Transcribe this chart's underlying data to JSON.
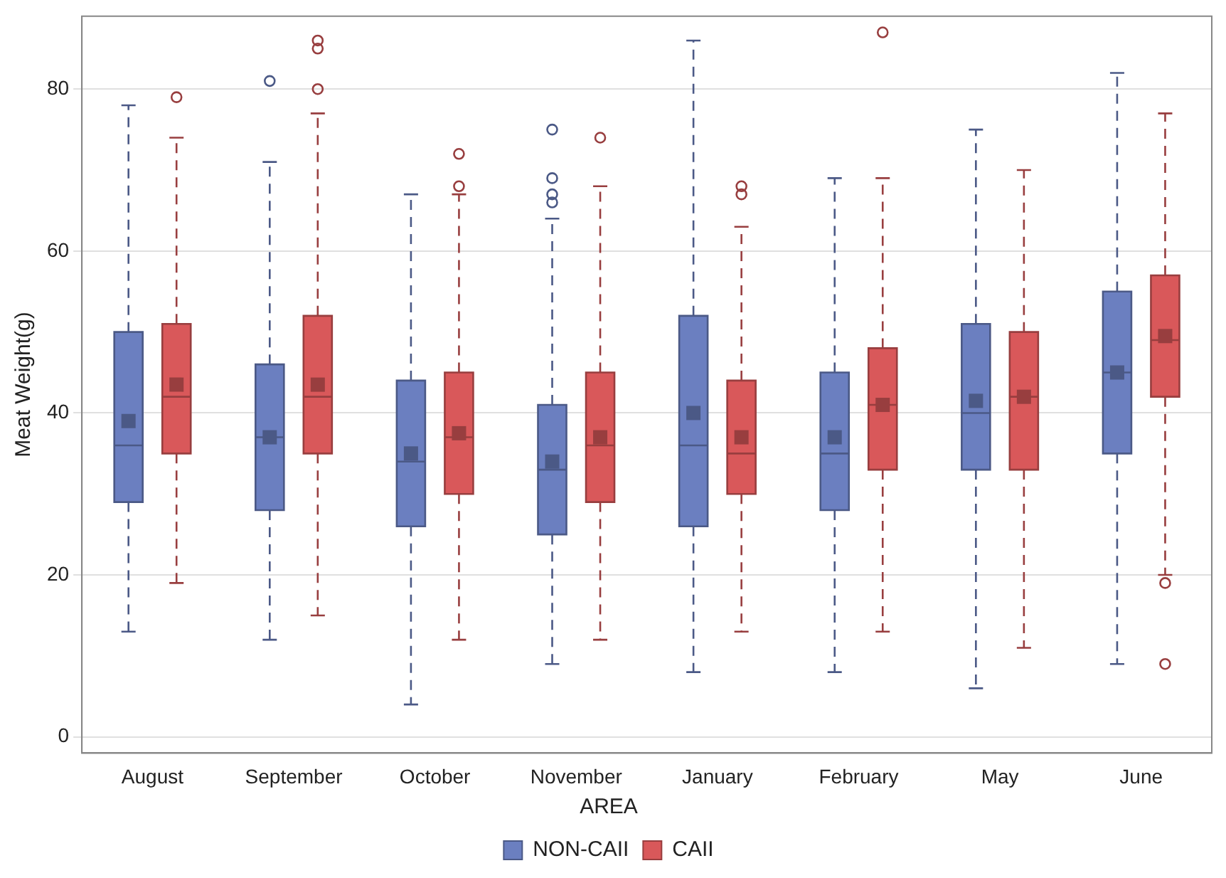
{
  "chart_data": {
    "type": "box",
    "ylabel": "Meat Weight(g)",
    "legend_title": "AREA",
    "legend": "bottom",
    "grid": "y",
    "line_style": "dashed",
    "categories": [
      "August",
      "September",
      "October",
      "November",
      "January",
      "February",
      "May",
      "June"
    ],
    "ylim": [
      -2,
      89
    ],
    "yticks": [
      0,
      20,
      40,
      60,
      80
    ],
    "series": [
      {
        "name": "NON-CAII",
        "color": "#6b7fc0",
        "boxes": [
          {
            "low": 13,
            "q1": 29,
            "median": 36,
            "q3": 50,
            "high": 78,
            "mean": 39
          },
          {
            "low": 12,
            "q1": 28,
            "median": 37,
            "q3": 46,
            "high": 71,
            "mean": 37,
            "outliers": [
              81
            ]
          },
          {
            "low": 4,
            "q1": 26,
            "median": 34,
            "q3": 44,
            "high": 67,
            "mean": 35
          },
          {
            "low": 9,
            "q1": 25,
            "median": 33,
            "q3": 41,
            "high": 64,
            "mean": 34,
            "outliers": [
              66,
              67,
              69,
              75
            ]
          },
          {
            "low": 8,
            "q1": 26,
            "median": 36,
            "q3": 52,
            "high": 86,
            "mean": 40
          },
          {
            "low": 8,
            "q1": 28,
            "median": 35,
            "q3": 45,
            "high": 69,
            "mean": 37
          },
          {
            "low": 6,
            "q1": 33,
            "median": 40,
            "q3": 51,
            "high": 75,
            "mean": 41.5
          },
          {
            "low": 9,
            "q1": 35,
            "median": 45,
            "q3": 55,
            "high": 82,
            "mean": 45
          }
        ]
      },
      {
        "name": "CAII",
        "color": "#d9585a",
        "boxes": [
          {
            "low": 19,
            "q1": 35,
            "median": 42,
            "q3": 51,
            "high": 74,
            "mean": 43.5,
            "outliers": [
              79
            ]
          },
          {
            "low": 15,
            "q1": 35,
            "median": 42,
            "q3": 52,
            "high": 77,
            "mean": 43.5,
            "outliers": [
              80,
              85,
              86
            ]
          },
          {
            "low": 12,
            "q1": 30,
            "median": 37,
            "q3": 45,
            "high": 67,
            "mean": 37.5,
            "outliers": [
              68,
              72
            ]
          },
          {
            "low": 12,
            "q1": 29,
            "median": 36,
            "q3": 45,
            "high": 68,
            "mean": 37,
            "outliers": [
              74
            ]
          },
          {
            "low": 13,
            "q1": 30,
            "median": 35,
            "q3": 44,
            "high": 63,
            "mean": 37,
            "outliers": [
              67,
              68
            ]
          },
          {
            "low": 13,
            "q1": 33,
            "median": 41,
            "q3": 48,
            "high": 69,
            "mean": 41,
            "outliers": [
              87
            ]
          },
          {
            "low": 11,
            "q1": 33,
            "median": 42,
            "q3": 50,
            "high": 70,
            "mean": 42
          },
          {
            "low": 20,
            "q1": 42,
            "median": 49,
            "q3": 57,
            "high": 77,
            "mean": 49.5,
            "outliers": [
              19,
              9
            ]
          }
        ]
      }
    ]
  }
}
